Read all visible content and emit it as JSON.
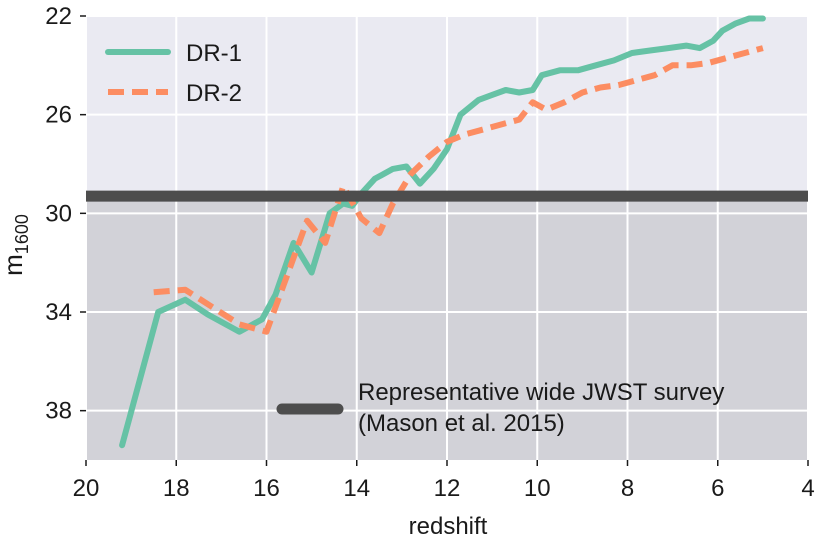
{
  "chart_data": {
    "type": "line",
    "xlabel": "redshift",
    "ylabel_main": "m",
    "ylabel_sub": "1600",
    "xlim": [
      20,
      4
    ],
    "ylim": [
      22,
      40
    ],
    "y_inverted": true,
    "grid": true,
    "xticks": [
      20,
      18,
      16,
      14,
      12,
      10,
      8,
      6,
      4
    ],
    "yticks": [
      22,
      26,
      30,
      34,
      38
    ],
    "legend_position": "top-left",
    "series": [
      {
        "name": "DR-1",
        "color": "#66c2a5",
        "style": "solid",
        "x": [
          19.2,
          18.4,
          17.8,
          17.3,
          16.6,
          16.1,
          15.8,
          15.4,
          15.0,
          14.6,
          14.3,
          14.1,
          13.9,
          13.6,
          13.2,
          12.9,
          12.6,
          12.3,
          12.0,
          11.7,
          11.3,
          11.0,
          10.7,
          10.4,
          10.1,
          9.9,
          9.5,
          9.1,
          8.7,
          8.3,
          7.9,
          7.5,
          7.1,
          6.7,
          6.4,
          6.1,
          5.9,
          5.6,
          5.3,
          5.0
        ],
        "y": [
          39.4,
          34.0,
          33.5,
          34.1,
          34.8,
          34.3,
          33.3,
          31.2,
          32.4,
          30.0,
          29.6,
          29.7,
          29.2,
          28.6,
          28.2,
          28.1,
          28.8,
          28.2,
          27.4,
          26.0,
          25.4,
          25.2,
          25.0,
          25.1,
          25.0,
          24.4,
          24.2,
          24.2,
          24.0,
          23.8,
          23.5,
          23.4,
          23.3,
          23.2,
          23.3,
          23.0,
          22.6,
          22.3,
          22.1,
          22.1
        ]
      },
      {
        "name": "DR-2",
        "color": "#fc8d62",
        "style": "dashed",
        "x": [
          18.5,
          17.8,
          17.2,
          16.6,
          16.0,
          15.6,
          15.1,
          14.7,
          14.3,
          13.9,
          13.5,
          13.2,
          12.8,
          12.4,
          12.0,
          11.6,
          11.2,
          10.8,
          10.4,
          10.1,
          9.8,
          9.4,
          9.0,
          8.6,
          8.2,
          7.8,
          7.4,
          7.0,
          6.6,
          6.2,
          5.8,
          5.4,
          5.0
        ],
        "y": [
          33.2,
          33.1,
          33.8,
          34.5,
          34.8,
          32.8,
          30.3,
          31.2,
          28.9,
          30.2,
          30.8,
          29.6,
          28.4,
          27.7,
          27.1,
          26.8,
          26.6,
          26.4,
          26.2,
          25.5,
          25.8,
          25.5,
          25.1,
          24.9,
          24.8,
          24.6,
          24.4,
          24.0,
          24.0,
          23.9,
          23.7,
          23.5,
          23.3
        ]
      }
    ],
    "threshold": {
      "y": 29.3,
      "color": "#4d4d4d",
      "label_line1": "Representative wide JWST survey",
      "label_line2": "(Mason et al. 2015)"
    },
    "colors": {
      "upper_background": "#eaeaf2",
      "lower_background": "#d2d2d8",
      "grid": "#ffffff"
    }
  }
}
